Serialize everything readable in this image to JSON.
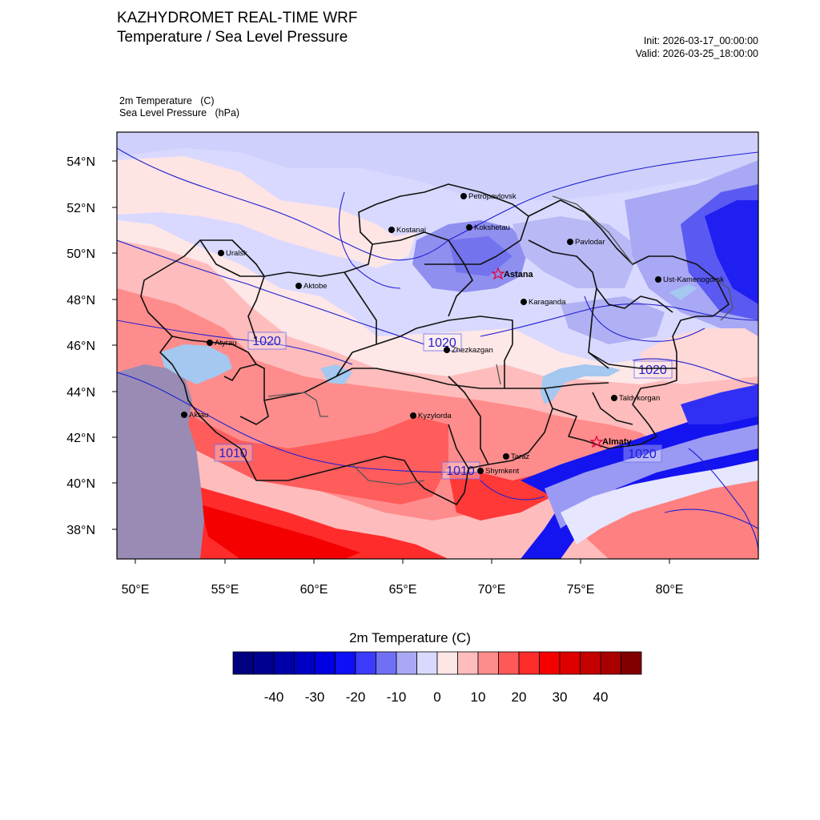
{
  "header": {
    "title": "KAZHYDROMET REAL-TIME WRF",
    "subtitle": "Temperature / Sea Level Pressure",
    "init": "Init: 2026-03-17_00:00:00",
    "valid": "Valid: 2026-03-25_18:00:00",
    "var_temperature": "2m Temperature   (C)",
    "var_pressure": "Sea Level Pressure   (hPa)"
  },
  "map": {
    "lat_labels": [
      "54°N",
      "52°N",
      "50°N",
      "48°N",
      "46°N",
      "44°N",
      "42°N",
      "40°N",
      "38°N"
    ],
    "lon_labels": [
      "50°E",
      "55°E",
      "60°E",
      "65°E",
      "70°E",
      "75°E",
      "80°E"
    ],
    "isobar_labels": [
      "1020",
      "1020",
      "1020",
      "1010",
      "1010",
      "1020"
    ],
    "cities": [
      "Petropavlovsk",
      "Kostanai",
      "Kokshetau",
      "Uralsk",
      "Pavlodar",
      "Aktobe",
      "Ust-Kamenogorsk",
      "Karaganda",
      "Atyrau",
      "Zhezkazgan",
      "Taldykorgan",
      "Aktau",
      "Kyzylorda",
      "Taraz",
      "Shymkent"
    ],
    "capitals": [
      "Astana",
      "Almaty"
    ]
  },
  "colorbar": {
    "title": "2m Temperature  (C)",
    "colors": [
      "#000080",
      "#00008f",
      "#0000a8",
      "#0000c4",
      "#0000e0",
      "#0f0ff5",
      "#3c3cfa",
      "#7070f5",
      "#a8a8f5",
      "#d9d9ff",
      "#fde6e6",
      "#ffbcbc",
      "#ff8c8c",
      "#ff5858",
      "#ff2c2c",
      "#f50000",
      "#de0000",
      "#c40000",
      "#a80000",
      "#800000"
    ],
    "tick_labels": [
      "-40",
      "-30",
      "-20",
      "-10",
      "0",
      "10",
      "20",
      "30",
      "40"
    ]
  }
}
